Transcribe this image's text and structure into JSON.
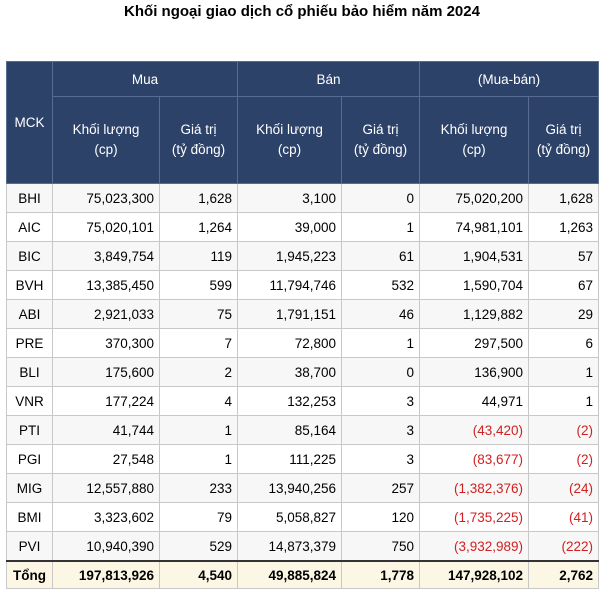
{
  "title": "Khối ngoại giao dịch cổ phiếu bảo hiểm năm 2024",
  "header": {
    "mck": "MCK",
    "groups": [
      "Mua",
      "Bán",
      "(Mua-bán)"
    ],
    "sub_volume_1": "Khối lượng",
    "sub_volume_2": "(cp)",
    "sub_value_1": "Giá trị",
    "sub_value_2": "(tỷ đồng)"
  },
  "rows": [
    {
      "mck": "BHI",
      "buy_vol": "75,023,300",
      "buy_val": "1,628",
      "sell_vol": "3,100",
      "sell_val": "0",
      "net_vol": "75,020,200",
      "net_val": "1,628"
    },
    {
      "mck": "AIC",
      "buy_vol": "75,020,101",
      "buy_val": "1,264",
      "sell_vol": "39,000",
      "sell_val": "1",
      "net_vol": "74,981,101",
      "net_val": "1,263"
    },
    {
      "mck": "BIC",
      "buy_vol": "3,849,754",
      "buy_val": "119",
      "sell_vol": "1,945,223",
      "sell_val": "61",
      "net_vol": "1,904,531",
      "net_val": "57"
    },
    {
      "mck": "BVH",
      "buy_vol": "13,385,450",
      "buy_val": "599",
      "sell_vol": "11,794,746",
      "sell_val": "532",
      "net_vol": "1,590,704",
      "net_val": "67"
    },
    {
      "mck": "ABI",
      "buy_vol": "2,921,033",
      "buy_val": "75",
      "sell_vol": "1,791,151",
      "sell_val": "46",
      "net_vol": "1,129,882",
      "net_val": "29"
    },
    {
      "mck": "PRE",
      "buy_vol": "370,300",
      "buy_val": "7",
      "sell_vol": "72,800",
      "sell_val": "1",
      "net_vol": "297,500",
      "net_val": "6"
    },
    {
      "mck": "BLI",
      "buy_vol": "175,600",
      "buy_val": "2",
      "sell_vol": "38,700",
      "sell_val": "0",
      "net_vol": "136,900",
      "net_val": "1"
    },
    {
      "mck": "VNR",
      "buy_vol": "177,224",
      "buy_val": "4",
      "sell_vol": "132,253",
      "sell_val": "3",
      "net_vol": "44,971",
      "net_val": "1"
    },
    {
      "mck": "PTI",
      "buy_vol": "41,744",
      "buy_val": "1",
      "sell_vol": "85,164",
      "sell_val": "3",
      "net_vol": "(43,420)",
      "net_val": "(2)"
    },
    {
      "mck": "PGI",
      "buy_vol": "27,548",
      "buy_val": "1",
      "sell_vol": "111,225",
      "sell_val": "3",
      "net_vol": "(83,677)",
      "net_val": "(2)"
    },
    {
      "mck": "MIG",
      "buy_vol": "12,557,880",
      "buy_val": "233",
      "sell_vol": "13,940,256",
      "sell_val": "257",
      "net_vol": "(1,382,376)",
      "net_val": "(24)"
    },
    {
      "mck": "BMI",
      "buy_vol": "3,323,602",
      "buy_val": "79",
      "sell_vol": "5,058,827",
      "sell_val": "120",
      "net_vol": "(1,735,225)",
      "net_val": "(41)"
    },
    {
      "mck": "PVI",
      "buy_vol": "10,940,390",
      "buy_val": "529",
      "sell_vol": "14,873,379",
      "sell_val": "750",
      "net_vol": "(3,932,989)",
      "net_val": "(222)"
    }
  ],
  "total": {
    "label": "Tổng",
    "buy_vol": "197,813,926",
    "buy_val": "4,540",
    "sell_vol": "49,885,824",
    "sell_val": "1,778",
    "net_vol": "147,928,102",
    "net_val": "2,762"
  },
  "colors": {
    "header_bg": "#2d4268",
    "negative": "#d21f1f",
    "total_bg": "#fbf7e4"
  }
}
